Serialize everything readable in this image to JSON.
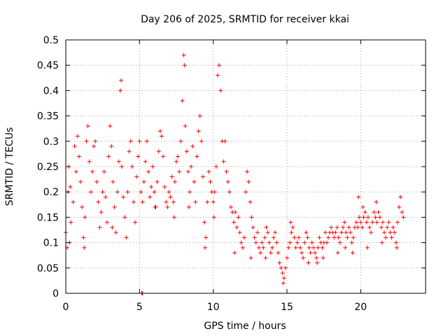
{
  "chart_data": {
    "type": "scatter",
    "title": "Day 206 of 2025, SRMTID for receiver kkai",
    "xlabel": "GPS time / hours",
    "ylabel": "SRMTID / TECUs",
    "xlim": [
      0,
      24.4
    ],
    "ylim": [
      0,
      0.5
    ],
    "x_ticks": [
      0,
      5,
      10,
      15,
      20
    ],
    "x_tick_labels": [
      "0",
      "5",
      "10",
      "15",
      "20"
    ],
    "y_ticks": [
      0,
      0.05,
      0.1,
      0.15,
      0.2,
      0.25,
      0.3,
      0.35,
      0.4,
      0.45,
      0.5
    ],
    "y_tick_labels": [
      "0",
      "0.05",
      "0.1",
      "0.15",
      "0.2",
      "0.25",
      "0.3",
      "0.35",
      "0.4",
      "0.45",
      "0.5"
    ],
    "grid": true,
    "marker": "+",
    "series": [
      {
        "name": "kkai",
        "color": "#ff0000",
        "points": [
          [
            0.0,
            0.12
          ],
          [
            0.1,
            0.09
          ],
          [
            0.15,
            0.2
          ],
          [
            0.2,
            0.25
          ],
          [
            0.3,
            0.21
          ],
          [
            0.35,
            0.14
          ],
          [
            0.5,
            0.18
          ],
          [
            0.6,
            0.29
          ],
          [
            0.7,
            0.24
          ],
          [
            0.8,
            0.31
          ],
          [
            0.9,
            0.27
          ],
          [
            1.0,
            0.22
          ],
          [
            1.1,
            0.17
          ],
          [
            1.2,
            0.11
          ],
          [
            1.3,
            0.15
          ],
          [
            1.4,
            0.3
          ],
          [
            1.5,
            0.33
          ],
          [
            1.6,
            0.26
          ],
          [
            1.7,
            0.2
          ],
          [
            1.8,
            0.24
          ],
          [
            1.9,
            0.29
          ],
          [
            2.0,
            0.3
          ],
          [
            2.1,
            0.22
          ],
          [
            2.2,
            0.18
          ],
          [
            2.3,
            0.13
          ],
          [
            2.4,
            0.16
          ],
          [
            2.5,
            0.2
          ],
          [
            2.6,
            0.24
          ],
          [
            2.7,
            0.19
          ],
          [
            2.8,
            0.14
          ],
          [
            2.9,
            0.27
          ],
          [
            3.0,
            0.33
          ],
          [
            3.1,
            0.29
          ],
          [
            3.2,
            0.22
          ],
          [
            3.3,
            0.17
          ],
          [
            3.4,
            0.12
          ],
          [
            3.5,
            0.2
          ],
          [
            3.6,
            0.26
          ],
          [
            3.7,
            0.4
          ],
          [
            3.75,
            0.42
          ],
          [
            3.8,
            0.25
          ],
          [
            3.9,
            0.19
          ],
          [
            4.0,
            0.15
          ],
          [
            4.1,
            0.11
          ],
          [
            4.2,
            0.2
          ],
          [
            4.3,
            0.28
          ],
          [
            4.4,
            0.3
          ],
          [
            4.5,
            0.25
          ],
          [
            4.6,
            0.18
          ],
          [
            4.7,
            0.14
          ],
          [
            4.8,
            0.23
          ],
          [
            4.9,
            0.27
          ],
          [
            5.0,
            0.3
          ],
          [
            5.1,
            0.2
          ],
          [
            5.2,
            0.18
          ],
          [
            5.3,
            0.22
          ],
          [
            5.4,
            0.26
          ],
          [
            5.5,
            0.3
          ],
          [
            5.6,
            0.24
          ],
          [
            5.7,
            0.19
          ],
          [
            5.8,
            0.21
          ],
          [
            5.9,
            0.25
          ],
          [
            6.0,
            0.2
          ],
          [
            6.1,
            0.17
          ],
          [
            6.2,
            0.22
          ],
          [
            6.3,
            0.28
          ],
          [
            6.4,
            0.32
          ],
          [
            6.5,
            0.31
          ],
          [
            6.6,
            0.27
          ],
          [
            6.7,
            0.21
          ],
          [
            6.8,
            0.18
          ],
          [
            6.9,
            0.17
          ],
          [
            7.0,
            0.2
          ],
          [
            7.1,
            0.19
          ],
          [
            7.2,
            0.23
          ],
          [
            7.3,
            0.18
          ],
          [
            7.4,
            0.22
          ],
          [
            7.5,
            0.26
          ],
          [
            7.6,
            0.27
          ],
          [
            7.7,
            0.24
          ],
          [
            7.8,
            0.3
          ],
          [
            7.9,
            0.38
          ],
          [
            8.0,
            0.47
          ],
          [
            8.05,
            0.45
          ],
          [
            8.1,
            0.33
          ],
          [
            8.2,
            0.28
          ],
          [
            8.3,
            0.24
          ],
          [
            8.4,
            0.2
          ],
          [
            8.5,
            0.25
          ],
          [
            8.6,
            0.29
          ],
          [
            8.7,
            0.22
          ],
          [
            8.8,
            0.18
          ],
          [
            8.9,
            0.27
          ],
          [
            9.0,
            0.32
          ],
          [
            9.1,
            0.35
          ],
          [
            9.2,
            0.3
          ],
          [
            9.3,
            0.23
          ],
          [
            9.4,
            0.14
          ],
          [
            9.5,
            0.11
          ],
          [
            9.6,
            0.18
          ],
          [
            9.7,
            0.24
          ],
          [
            9.8,
            0.22
          ],
          [
            9.9,
            0.2
          ],
          [
            10.0,
            0.18
          ],
          [
            10.1,
            0.2
          ],
          [
            10.2,
            0.25
          ],
          [
            10.3,
            0.43
          ],
          [
            10.4,
            0.45
          ],
          [
            10.5,
            0.4
          ],
          [
            10.6,
            0.3
          ],
          [
            10.7,
            0.26
          ],
          [
            10.8,
            0.3
          ],
          [
            10.9,
            0.24
          ],
          [
            11.0,
            0.22
          ],
          [
            11.1,
            0.2
          ],
          [
            11.2,
            0.17
          ],
          [
            11.3,
            0.16
          ],
          [
            11.4,
            0.14
          ],
          [
            11.5,
            0.16
          ],
          [
            11.6,
            0.13
          ],
          [
            11.7,
            0.15
          ],
          [
            11.8,
            0.12
          ],
          [
            11.9,
            0.1
          ],
          [
            12.0,
            0.09
          ],
          [
            12.1,
            0.11
          ],
          [
            12.2,
            0.2
          ],
          [
            12.3,
            0.24
          ],
          [
            12.4,
            0.22
          ],
          [
            12.5,
            0.18
          ],
          [
            12.6,
            0.15
          ],
          [
            12.7,
            0.13
          ],
          [
            12.8,
            0.11
          ],
          [
            12.9,
            0.1
          ],
          [
            13.0,
            0.12
          ],
          [
            13.1,
            0.09
          ],
          [
            13.2,
            0.08
          ],
          [
            13.3,
            0.1
          ],
          [
            13.4,
            0.09
          ],
          [
            13.5,
            0.11
          ],
          [
            13.6,
            0.13
          ],
          [
            13.7,
            0.12
          ],
          [
            13.8,
            0.1
          ],
          [
            13.9,
            0.08
          ],
          [
            14.0,
            0.09
          ],
          [
            14.1,
            0.11
          ],
          [
            14.2,
            0.12
          ],
          [
            14.3,
            0.1
          ],
          [
            14.4,
            0.08
          ],
          [
            14.5,
            0.06
          ],
          [
            14.6,
            0.05
          ],
          [
            14.7,
            0.04
          ],
          [
            14.8,
            0.03
          ],
          [
            14.9,
            0.05
          ],
          [
            15.0,
            0.07
          ],
          [
            15.1,
            0.09
          ],
          [
            15.2,
            0.1
          ],
          [
            15.3,
            0.12
          ],
          [
            15.4,
            0.13
          ],
          [
            15.5,
            0.11
          ],
          [
            15.6,
            0.09
          ],
          [
            15.7,
            0.1
          ],
          [
            15.8,
            0.11
          ],
          [
            15.9,
            0.09
          ],
          [
            16.0,
            0.08
          ],
          [
            16.1,
            0.07
          ],
          [
            16.2,
            0.1
          ],
          [
            16.3,
            0.12
          ],
          [
            16.4,
            0.11
          ],
          [
            16.5,
            0.09
          ],
          [
            16.6,
            0.08
          ],
          [
            16.7,
            0.1
          ],
          [
            16.8,
            0.09
          ],
          [
            16.9,
            0.08
          ],
          [
            17.0,
            0.07
          ],
          [
            17.1,
            0.09
          ],
          [
            17.2,
            0.11
          ],
          [
            17.3,
            0.1
          ],
          [
            17.4,
            0.09
          ],
          [
            17.5,
            0.1
          ],
          [
            17.6,
            0.12
          ],
          [
            17.7,
            0.1
          ],
          [
            17.8,
            0.11
          ],
          [
            17.9,
            0.12
          ],
          [
            18.0,
            0.13
          ],
          [
            18.1,
            0.12
          ],
          [
            18.2,
            0.11
          ],
          [
            18.3,
            0.12
          ],
          [
            18.4,
            0.13
          ],
          [
            18.5,
            0.11
          ],
          [
            18.6,
            0.1
          ],
          [
            18.7,
            0.12
          ],
          [
            18.8,
            0.13
          ],
          [
            18.9,
            0.14
          ],
          [
            19.0,
            0.12
          ],
          [
            19.1,
            0.11
          ],
          [
            19.2,
            0.13
          ],
          [
            19.3,
            0.12
          ],
          [
            19.4,
            0.1
          ],
          [
            19.5,
            0.11
          ],
          [
            19.6,
            0.13
          ],
          [
            19.7,
            0.14
          ],
          [
            19.8,
            0.13
          ],
          [
            19.9,
            0.15
          ],
          [
            20.0,
            0.14
          ],
          [
            20.1,
            0.13
          ],
          [
            20.2,
            0.15
          ],
          [
            20.3,
            0.16
          ],
          [
            20.4,
            0.14
          ],
          [
            20.5,
            0.15
          ],
          [
            20.6,
            0.13
          ],
          [
            20.7,
            0.12
          ],
          [
            20.8,
            0.14
          ],
          [
            20.9,
            0.16
          ],
          [
            21.0,
            0.15
          ],
          [
            21.1,
            0.14
          ],
          [
            21.2,
            0.16
          ],
          [
            21.3,
            0.15
          ],
          [
            21.4,
            0.13
          ],
          [
            21.5,
            0.14
          ],
          [
            21.6,
            0.12
          ],
          [
            21.7,
            0.11
          ],
          [
            21.8,
            0.13
          ],
          [
            21.9,
            0.14
          ],
          [
            22.0,
            0.12
          ],
          [
            22.1,
            0.11
          ],
          [
            22.2,
            0.13
          ],
          [
            22.3,
            0.12
          ],
          [
            22.4,
            0.1
          ],
          [
            22.5,
            0.14
          ],
          [
            22.6,
            0.17
          ],
          [
            22.7,
            0.19
          ],
          [
            22.8,
            0.16
          ],
          [
            22.9,
            0.15
          ],
          [
            5.15,
            0.0
          ],
          [
            5.2,
            0.0
          ],
          [
            0.25,
            0.1
          ],
          [
            1.25,
            0.09
          ],
          [
            3.15,
            0.13
          ],
          [
            6.05,
            0.17
          ],
          [
            7.35,
            0.15
          ],
          [
            8.35,
            0.17
          ],
          [
            9.45,
            0.09
          ],
          [
            10.05,
            0.15
          ],
          [
            11.45,
            0.08
          ],
          [
            12.55,
            0.07
          ],
          [
            13.55,
            0.07
          ],
          [
            16.45,
            0.06
          ],
          [
            17.45,
            0.07
          ],
          [
            18.45,
            0.08
          ],
          [
            19.45,
            0.08
          ],
          [
            20.45,
            0.09
          ],
          [
            21.45,
            0.1
          ],
          [
            22.45,
            0.09
          ],
          [
            14.75,
            0.02
          ],
          [
            15.25,
            0.14
          ],
          [
            17.05,
            0.06
          ],
          [
            18.95,
            0.09
          ],
          [
            21.05,
            0.18
          ],
          [
            20.15,
            0.17
          ],
          [
            19.85,
            0.19
          ]
        ]
      }
    ]
  }
}
